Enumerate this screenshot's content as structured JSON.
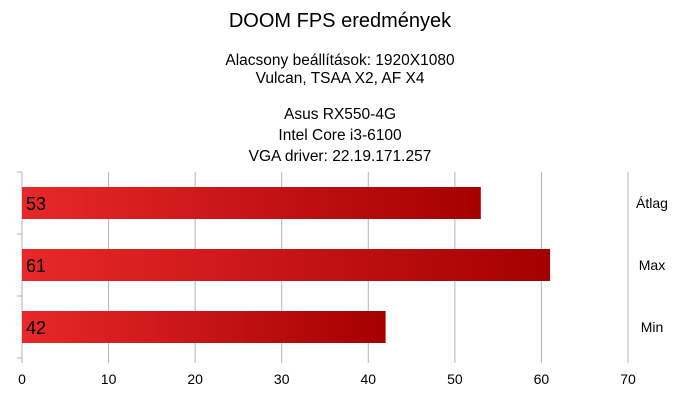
{
  "chart_data": {
    "type": "bar",
    "orientation": "horizontal",
    "title": "DOOM FPS eredmények",
    "subtitle_lines": [
      "Alacsony beállítások: 1920X1080",
      "Vulcan, TSAA X2, AF X4",
      "",
      "Asus RX550-4G",
      "Intel Core i3-6100",
      "VGA driver: 22.19.171.257"
    ],
    "categories": [
      "Átlag",
      "Max",
      "Min"
    ],
    "values": [
      53,
      61,
      42
    ],
    "value_labels": [
      "53",
      "61",
      "42"
    ],
    "xlim": [
      0,
      70
    ],
    "x_ticks": [
      0,
      10,
      20,
      30,
      40,
      50,
      60,
      70
    ],
    "x_tick_labels": [
      "0",
      "10",
      "20",
      "30",
      "40",
      "50",
      "60",
      "70"
    ],
    "grid": "vertical",
    "legend": "none",
    "colors": {
      "bar_light": "#e8282a",
      "bar_dark": "#a50000",
      "grid": "#b3b3b3"
    }
  }
}
